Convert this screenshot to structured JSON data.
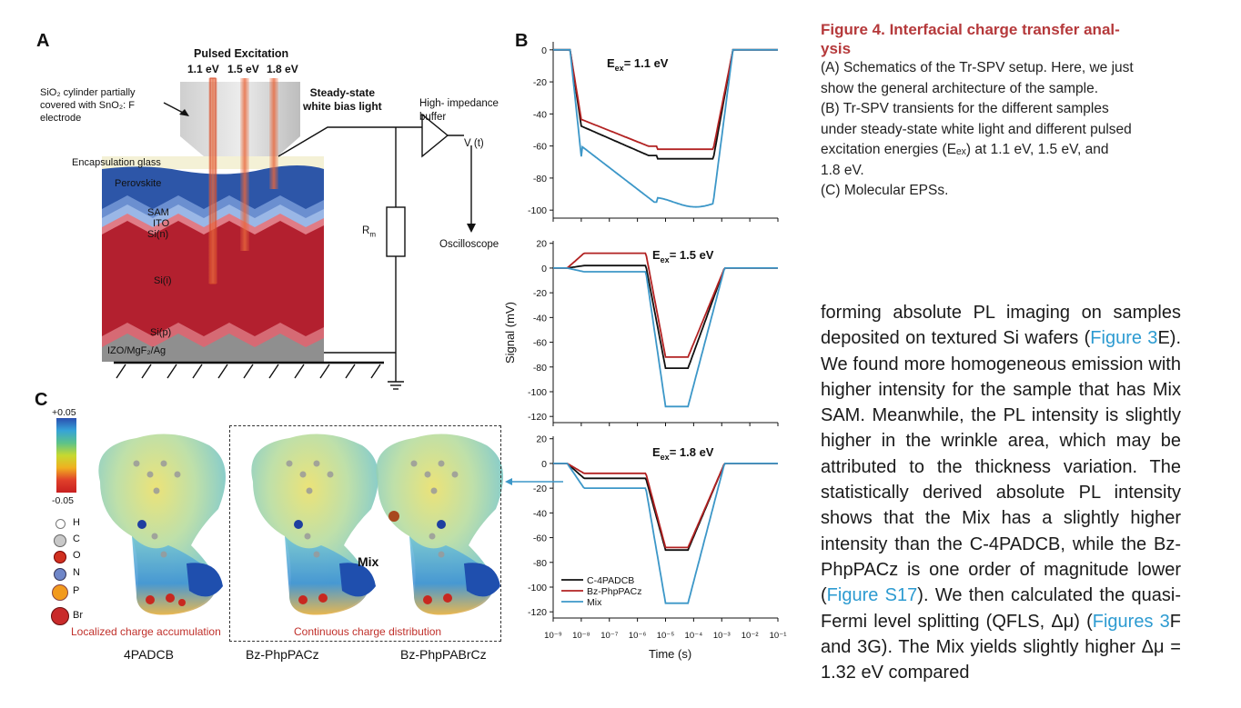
{
  "panelA": {
    "letter": "A",
    "pulsed_title": "Pulsed Excitation",
    "energies": [
      "1.1 eV",
      "1.5 eV",
      "1.8 eV"
    ],
    "sio2_note": [
      "SiO₂ cylinder partially",
      "covered with SnO₂: F",
      "electrode"
    ],
    "bias_light": [
      "Steady-state",
      "white bias light"
    ],
    "buffer": [
      "High- impedance",
      "buffer"
    ],
    "vt": "V (t)",
    "oscilloscope": "Oscilloscope",
    "rm": "R",
    "rm_sub": "m",
    "layers": [
      "Encapsulation glass",
      "Perovskite",
      "SAM",
      "ITO",
      "Si(n)",
      "Si(i)",
      "Si(p)",
      "IZO/MgF₂/Ag"
    ]
  },
  "panelB": {
    "letter": "B",
    "ylabel": "Signal (mV)",
    "xlabel": "Time (s)",
    "xticks": [
      "10⁻⁹",
      "10⁻⁸",
      "10⁻⁷",
      "10⁻⁶",
      "10⁻⁵",
      "10⁻⁴",
      "10⁻³",
      "10⁻²",
      "10⁻¹"
    ],
    "subplots": [
      {
        "title": "E",
        "title_sub": "ex",
        "title_rest": "= 1.1 eV",
        "yticks": [
          "0",
          "-20",
          "-40",
          "-60",
          "-80",
          "-100"
        ]
      },
      {
        "title": "E",
        "title_sub": "ex",
        "title_rest": "= 1.5 eV",
        "yticks": [
          "20",
          "0",
          "-20",
          "-40",
          "-60",
          "-80",
          "-100",
          "-120"
        ]
      },
      {
        "title": "E",
        "title_sub": "ex",
        "title_rest": "= 1.8 eV",
        "yticks": [
          "20",
          "0",
          "-20",
          "-40",
          "-60",
          "-80",
          "-100",
          "-120"
        ]
      }
    ],
    "legend": [
      "C-4PADCB",
      "Bz-PhpPACz",
      "Mix"
    ],
    "colors": {
      "c4padcb": "#111111",
      "bz": "#b22222",
      "mix": "#3c97c8"
    }
  },
  "chart_data": [
    {
      "type": "line",
      "title": "Eex = 1.1 eV",
      "xlabel": "Time (s)",
      "ylabel": "Signal (mV)",
      "xscale": "log",
      "xlim": [
        1e-09,
        0.1
      ],
      "ylim": [
        -105,
        5
      ],
      "series": [
        {
          "name": "C-4PADCB",
          "plateau": -68
        },
        {
          "name": "Bz-PhpPACz",
          "plateau": -62
        },
        {
          "name": "Mix",
          "plateau": -95
        }
      ]
    },
    {
      "type": "line",
      "title": "Eex = 1.5 eV",
      "xlabel": "Time (s)",
      "ylabel": "Signal (mV)",
      "xscale": "log",
      "xlim": [
        1e-09,
        0.1
      ],
      "ylim": [
        -125,
        22
      ],
      "series": [
        {
          "name": "C-4PADCB",
          "plateau": -81
        },
        {
          "name": "Bz-PhpPACz",
          "plateau": -72
        },
        {
          "name": "Mix",
          "plateau": -112
        }
      ]
    },
    {
      "type": "line",
      "title": "Eex = 1.8 eV",
      "xlabel": "Time (s)",
      "ylabel": "Signal (mV)",
      "xscale": "log",
      "xlim": [
        1e-09,
        0.1
      ],
      "ylim": [
        -125,
        22
      ],
      "series": [
        {
          "name": "C-4PADCB",
          "plateau": -70
        },
        {
          "name": "Bz-PhpPACz",
          "plateau": -68
        },
        {
          "name": "Mix",
          "plateau": -113
        }
      ]
    }
  ],
  "panelC": {
    "letter": "C",
    "scale_max": "+0.05",
    "scale_min": "-0.05",
    "atoms": [
      "H",
      "C",
      "O",
      "N",
      "P",
      "Br"
    ],
    "atom_colors": [
      "#ffffff",
      "#c8c8c8",
      "#d03020",
      "#6f86c8",
      "#f29a1e",
      "#c92a2a"
    ],
    "localized": "Localized charge accumulation",
    "continuous": "Continuous charge distribution",
    "mix": "Mix",
    "names": [
      "4PADCB",
      "Bz-PhpPACz",
      "Bz-PhpPABrCz"
    ]
  },
  "caption": {
    "title_l1": "Figure 4. Interfacial charge transfer anal-",
    "title_l2": "ysis",
    "lines": [
      "(A) Schematics of the Tr-SPV setup. Here, we just",
      "show the general architecture of the sample.",
      "(B) Tr-SPV transients for the different samples",
      "under steady-state white light and different pulsed",
      "excitation energies (Eₑₓ) at 1.1 eV, 1.5 eV, and",
      "1.8 eV.",
      "(C) Molecular EPSs."
    ]
  },
  "body": {
    "t1": "forming absolute PL imaging on samples deposited on textured Si wafers (",
    "link1": "Figure 3",
    "t2": "E). We found more homogeneous emission with higher intensity for the sample that has Mix SAM. Meanwhile, the PL intensity is slightly higher in the wrinkle area, which may be attributed to the thickness variation. The statistically derived absolute PL intensity shows that the Mix has a slightly higher intensity than the C-4PADCB, while the Bz-PhpPACz is one order of magnitude lower (",
    "link2": "Figure S17",
    "t3": "). We then calculated the quasi-Fermi level splitting (QFLS, Δμ) (",
    "link3": "Figures 3",
    "t4": "F and 3G). The Mix yields slightly higher Δμ = 1.32 eV compared"
  }
}
